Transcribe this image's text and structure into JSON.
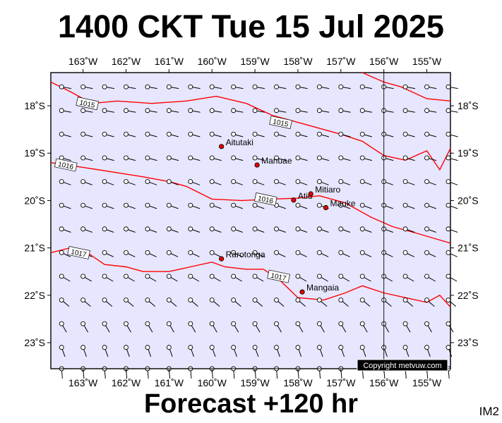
{
  "header": {
    "title": "1400 CKT Tue 15 Jul 2025"
  },
  "footer": {
    "subtitle": "Forecast +120 hr",
    "corner_label": "IM2",
    "copyright": "Copyright metvuw.com"
  },
  "colors": {
    "background": "#e6e6ff",
    "isobar": "#ff0000",
    "coastline": "#000000"
  },
  "map": {
    "lon_range": [
      -163.75,
      -154.45
    ],
    "lat_range": [
      -23.55,
      -17.3
    ],
    "x_ticks": [
      {
        "lon": -163,
        "label": "163˚W"
      },
      {
        "lon": -162,
        "label": "162˚W"
      },
      {
        "lon": -161,
        "label": "161˚W"
      },
      {
        "lon": -160,
        "label": "160˚W"
      },
      {
        "lon": -159,
        "label": "159˚W"
      },
      {
        "lon": -158,
        "label": "158˚W"
      },
      {
        "lon": -157,
        "label": "157˚W"
      },
      {
        "lon": -156,
        "label": "156˚W"
      },
      {
        "lon": -155,
        "label": "155˚W"
      }
    ],
    "y_ticks": [
      {
        "lat": -18,
        "label": "18˚S"
      },
      {
        "lat": -19,
        "label": "19˚S"
      },
      {
        "lat": -20,
        "label": "20˚S"
      },
      {
        "lat": -21,
        "label": "21˚S"
      },
      {
        "lat": -22,
        "label": "22˚S"
      },
      {
        "lat": -23,
        "label": "23˚S"
      }
    ],
    "places": [
      {
        "name": "Aitutaki",
        "lon": -159.78,
        "lat": -18.86
      },
      {
        "name": "Manuae",
        "lon": -158.95,
        "lat": -19.25
      },
      {
        "name": "Atiu",
        "lon": -158.1,
        "lat": -19.99
      },
      {
        "name": "Mitiaro",
        "lon": -157.7,
        "lat": -19.86
      },
      {
        "name": "Mauke",
        "lon": -157.35,
        "lat": -20.15
      },
      {
        "name": "Rarotonga",
        "lon": -159.78,
        "lat": -21.23
      },
      {
        "name": "Mangaia",
        "lon": -157.9,
        "lat": -21.93
      }
    ],
    "isobars": [
      {
        "label": "1015",
        "label_pos": [
          -162.9,
          -17.95
        ],
        "label2": "1015",
        "label2_pos": [
          -158.4,
          -18.35
        ],
        "points": [
          [
            -163.75,
            -17.5
          ],
          [
            -163.3,
            -17.7
          ],
          [
            -162.8,
            -17.95
          ],
          [
            -162.2,
            -17.9
          ],
          [
            -161.4,
            -17.95
          ],
          [
            -160.6,
            -17.9
          ],
          [
            -159.9,
            -17.8
          ],
          [
            -159.2,
            -17.95
          ],
          [
            -158.6,
            -18.2
          ],
          [
            -157.8,
            -18.4
          ],
          [
            -157.0,
            -18.6
          ],
          [
            -156.5,
            -18.75
          ],
          [
            -156.0,
            -19.05
          ],
          [
            -155.5,
            -19.15
          ],
          [
            -155.0,
            -18.95
          ],
          [
            -154.7,
            -19.35
          ],
          [
            -154.45,
            -18.9
          ]
        ]
      },
      {
        "points": [
          [
            -156.5,
            -17.3
          ],
          [
            -156.0,
            -17.5
          ],
          [
            -155.6,
            -17.6
          ],
          [
            -155.0,
            -17.85
          ],
          [
            -154.45,
            -17.9
          ]
        ]
      },
      {
        "label": "1016",
        "label_pos": [
          -163.4,
          -19.25
        ],
        "label2": "1016",
        "label2_pos": [
          -158.75,
          -19.97
        ],
        "points": [
          [
            -163.75,
            -19.2
          ],
          [
            -163.0,
            -19.3
          ],
          [
            -162.3,
            -19.4
          ],
          [
            -161.6,
            -19.5
          ],
          [
            -161.0,
            -19.6
          ],
          [
            -160.6,
            -19.7
          ],
          [
            -160.0,
            -19.97
          ],
          [
            -159.3,
            -20.0
          ],
          [
            -158.6,
            -19.97
          ],
          [
            -158.0,
            -19.95
          ],
          [
            -157.5,
            -19.9
          ],
          [
            -156.9,
            -20.05
          ],
          [
            -156.3,
            -20.35
          ],
          [
            -155.8,
            -20.55
          ],
          [
            -155.2,
            -20.7
          ],
          [
            -154.45,
            -20.9
          ]
        ]
      },
      {
        "label": "1017",
        "label_pos": [
          -163.1,
          -21.1
        ],
        "label2": "1017",
        "label2_pos": [
          -158.45,
          -21.6
        ],
        "points": [
          [
            -163.75,
            -21.1
          ],
          [
            -163.3,
            -21.0
          ],
          [
            -162.9,
            -21.1
          ],
          [
            -162.5,
            -21.35
          ],
          [
            -162.0,
            -21.4
          ],
          [
            -161.6,
            -21.5
          ],
          [
            -161.0,
            -21.5
          ],
          [
            -160.5,
            -21.4
          ],
          [
            -160.0,
            -21.3
          ],
          [
            -159.7,
            -21.4
          ],
          [
            -159.2,
            -21.45
          ],
          [
            -158.8,
            -21.45
          ],
          [
            -158.4,
            -21.7
          ],
          [
            -158.0,
            -22.05
          ],
          [
            -157.4,
            -22.1
          ],
          [
            -156.9,
            -21.95
          ],
          [
            -156.5,
            -21.8
          ],
          [
            -156.0,
            -21.95
          ],
          [
            -155.5,
            -22.05
          ],
          [
            -155.0,
            -22.15
          ],
          [
            -154.7,
            -22.0
          ],
          [
            -154.45,
            -22.25
          ]
        ]
      }
    ],
    "coast_lines": [
      {
        "points": [
          [
            -156.0,
            -17.3
          ],
          [
            -156.0,
            -23.55
          ]
        ]
      },
      {
        "points": [
          [
            -163.75,
            -23.55
          ],
          [
            -154.45,
            -23.55
          ]
        ]
      }
    ],
    "wind_rows": [
      {
        "lat": -17.6,
        "barb_dir": 10
      },
      {
        "lat": -18.1,
        "barb_dir": 10
      },
      {
        "lat": -18.6,
        "barb_dir": 15
      },
      {
        "lat": -19.1,
        "barb_dir": 15
      },
      {
        "lat": -19.6,
        "barb_dir": 20
      },
      {
        "lat": -20.1,
        "barb_dir": 20
      },
      {
        "lat": -20.6,
        "barb_dir": 20
      },
      {
        "lat": -21.1,
        "barb_dir": 25
      },
      {
        "lat": -21.6,
        "barb_dir": 30
      },
      {
        "lat": -22.1,
        "barb_dir": 40
      },
      {
        "lat": -22.6,
        "barb_dir": 60
      },
      {
        "lat": -23.1,
        "barb_dir": 70
      },
      {
        "lat": -23.55,
        "barb_dir": 85
      }
    ],
    "wind_lons": [
      -163.5,
      -163.0,
      -162.5,
      -162.0,
      -161.5,
      -161.0,
      -160.5,
      -160.0,
      -159.5,
      -159.0,
      -158.5,
      -158.0,
      -157.5,
      -157.0,
      -156.5,
      -156.0,
      -155.5,
      -155.0,
      -154.5
    ]
  }
}
